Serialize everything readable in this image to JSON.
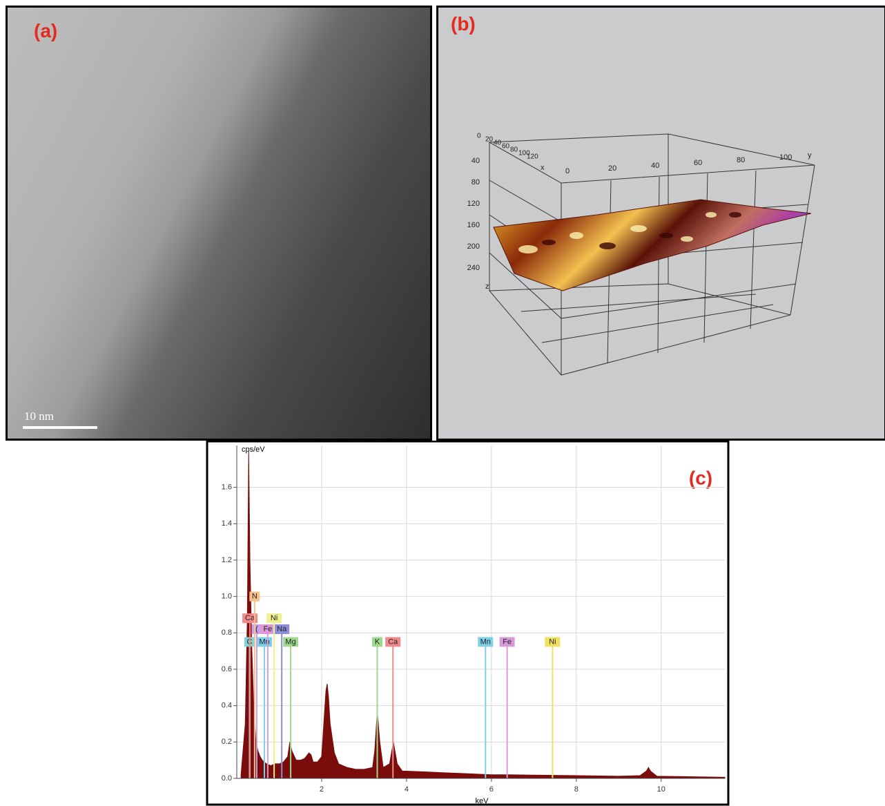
{
  "panels": {
    "a": {
      "label": "(a)",
      "scale_bar": "10 nm"
    },
    "b": {
      "label": "(b)",
      "x_ticks": [
        "0",
        "20",
        "40",
        "60",
        "80",
        "100",
        "120"
      ],
      "x_title": "x",
      "y_ticks": [
        "0",
        "20",
        "40",
        "60",
        "80",
        "100"
      ],
      "y_title": "y",
      "z_ticks": [
        "40",
        "80",
        "120",
        "160",
        "200",
        "240"
      ],
      "z_title": "z"
    }
  },
  "chart_data": {
    "type": "area",
    "label": "(c)",
    "y_label": "cps/eV",
    "x_label": "keV",
    "color": "#7b0c0c",
    "grid": true,
    "xlim": [
      0,
      11.5
    ],
    "ylim": [
      0,
      1.83
    ],
    "xticks": [
      2,
      4,
      6,
      8,
      10
    ],
    "yticks": [
      {
        "value": 0,
        "label": "0.0"
      },
      0.2,
      0.4,
      0.6,
      0.8,
      {
        "value": 1,
        "label": "1.0"
      },
      1.2,
      1.4,
      1.6
    ],
    "x": [
      0.1,
      0.2,
      0.25,
      0.28,
      0.31,
      0.35,
      0.4,
      0.45,
      0.5,
      0.55,
      0.6,
      0.7,
      0.8,
      0.9,
      1.0,
      1.1,
      1.2,
      1.25,
      1.3,
      1.4,
      1.5,
      1.6,
      1.7,
      1.75,
      1.8,
      1.9,
      2.0,
      2.05,
      2.1,
      2.13,
      2.16,
      2.2,
      2.3,
      2.4,
      2.6,
      2.8,
      3.0,
      3.2,
      3.25,
      3.31,
      3.37,
      3.45,
      3.6,
      3.69,
      3.78,
      3.9,
      4.0,
      4.5,
      5.0,
      5.5,
      6.0,
      6.4,
      7.0,
      8.0,
      9.0,
      9.5,
      9.65,
      9.7,
      9.75,
      9.9,
      10.5,
      11.0,
      11.5
    ],
    "values": [
      0.02,
      0.3,
      0.9,
      1.8,
      1.2,
      0.75,
      0.4,
      0.2,
      0.15,
      0.12,
      0.1,
      0.08,
      0.07,
      0.08,
      0.08,
      0.09,
      0.12,
      0.2,
      0.15,
      0.1,
      0.1,
      0.11,
      0.14,
      0.13,
      0.09,
      0.09,
      0.12,
      0.3,
      0.48,
      0.52,
      0.45,
      0.3,
      0.14,
      0.08,
      0.06,
      0.05,
      0.05,
      0.06,
      0.15,
      0.37,
      0.2,
      0.06,
      0.08,
      0.2,
      0.08,
      0.04,
      0.04,
      0.035,
      0.03,
      0.025,
      0.02,
      0.02,
      0.018,
      0.015,
      0.012,
      0.015,
      0.04,
      0.06,
      0.04,
      0.012,
      0.01,
      0.008,
      0.006
    ],
    "markers": [
      {
        "label": "C",
        "energy": 0.3,
        "level": 0.75,
        "color": "#7fd3d3"
      },
      {
        "label": "Mn",
        "energy": 0.65,
        "level": 0.75,
        "color": "#7fd0e6"
      },
      {
        "label": "Mg",
        "energy": 1.27,
        "level": 0.75,
        "color": "#a0d890"
      },
      {
        "label": "(",
        "energy": 0.47,
        "level": 0.82,
        "color": "#c9a0e8"
      },
      {
        "label": "Fe",
        "energy": 0.73,
        "level": 0.82,
        "color": "#d89bd8"
      },
      {
        "label": "Na",
        "energy": 1.06,
        "level": 0.82,
        "color": "#8c8cd8"
      },
      {
        "label": "Ca",
        "energy": 0.31,
        "level": 0.88,
        "color": "#f08a8a"
      },
      {
        "label": "Ni",
        "energy": 0.88,
        "level": 0.88,
        "color": "#f0f090"
      },
      {
        "label": "N",
        "energy": 0.42,
        "level": 1,
        "color": "#f5c18a"
      },
      {
        "label": "K",
        "energy": 3.31,
        "level": 0.75,
        "color": "#a0d890"
      },
      {
        "label": "Ca",
        "energy": 3.68,
        "level": 0.75,
        "color": "#f08a8a"
      },
      {
        "label": "Mn",
        "energy": 5.86,
        "level": 0.75,
        "color": "#7fd0e6"
      },
      {
        "label": "Fe",
        "energy": 6.37,
        "level": 0.75,
        "color": "#d89bd8"
      },
      {
        "label": "Ni",
        "energy": 7.44,
        "level": 0.75,
        "color": "#f0e060"
      }
    ]
  }
}
